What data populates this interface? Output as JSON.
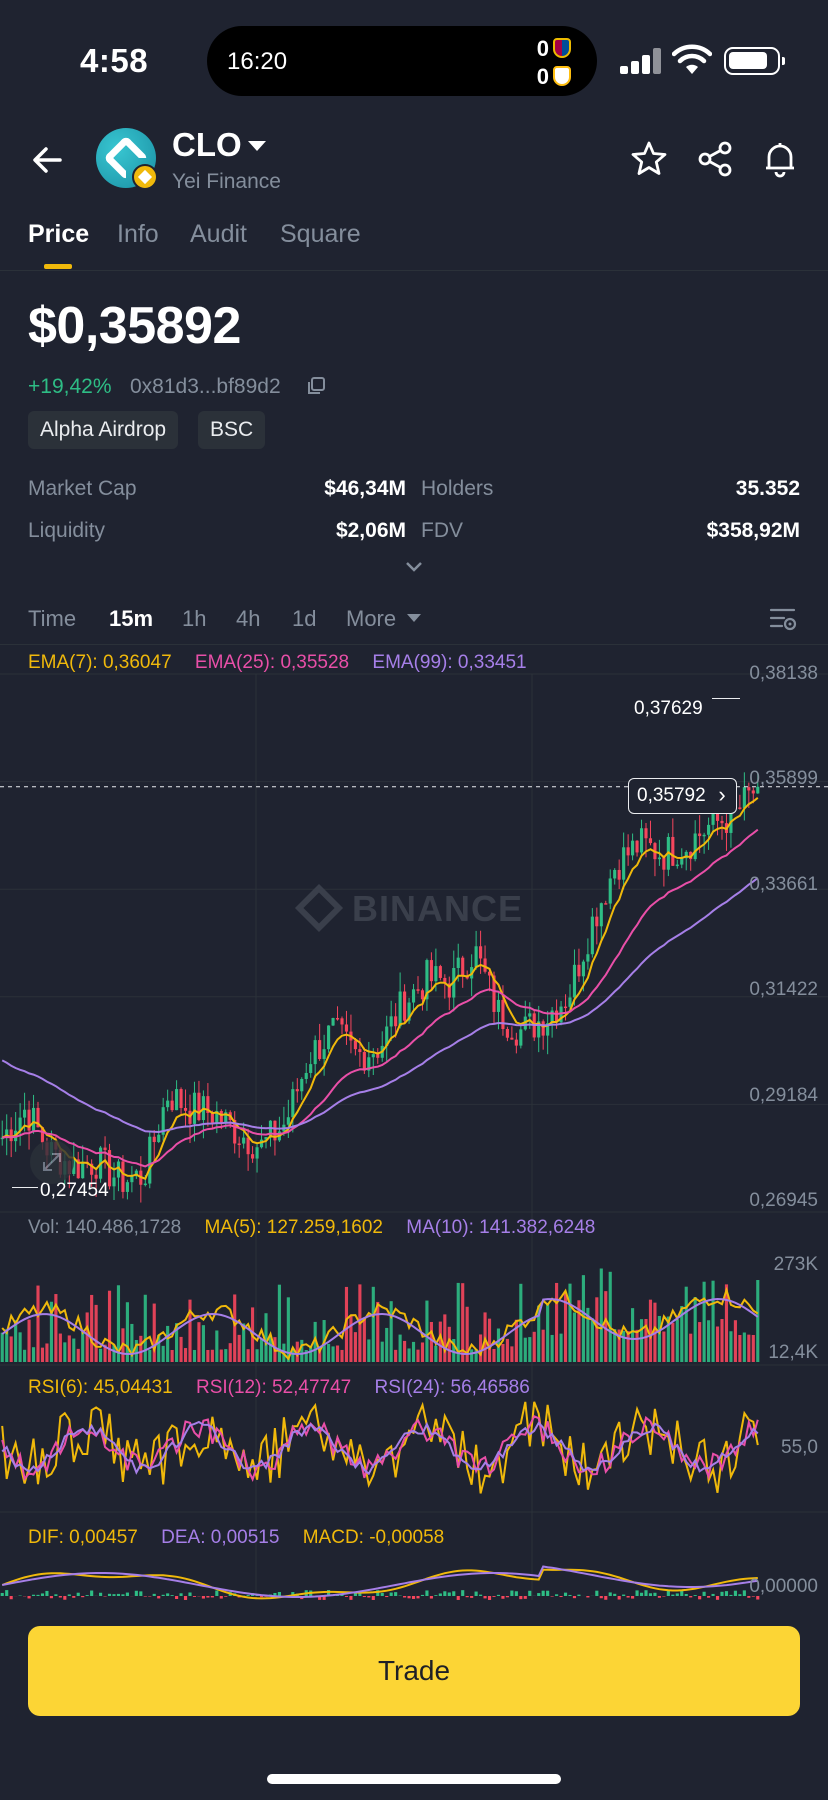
{
  "status_bar": {
    "time": "4:58",
    "island_time": "16:20",
    "score_home": "0",
    "score_away": "0"
  },
  "header": {
    "symbol": "CLO",
    "name": "Yei Finance"
  },
  "tabs": [
    {
      "label": "Price",
      "active": true
    },
    {
      "label": "Info"
    },
    {
      "label": "Audit"
    },
    {
      "label": "Square"
    }
  ],
  "price": {
    "value": "$0,35892",
    "change": "+19,42%",
    "address": "0x81d3...bf89d2",
    "tags": [
      "Alpha Airdrop",
      "BSC"
    ]
  },
  "stats": {
    "market_cap_label": "Market Cap",
    "market_cap": "$46,34M",
    "holders_label": "Holders",
    "holders": "35.352",
    "liquidity_label": "Liquidity",
    "liquidity": "$2,06M",
    "fdv_label": "FDV",
    "fdv": "$358,92M"
  },
  "intervals": {
    "time": "Time",
    "i15m": "15m",
    "i1h": "1h",
    "i4h": "4h",
    "i1d": "1d",
    "more": "More"
  },
  "indicators": {
    "ema7": "EMA(7): 0,36047",
    "ema25": "EMA(25): 0,35528",
    "ema99": "EMA(99): 0,33451",
    "vol": "Vol: 140.486,1728",
    "ma5": "MA(5): 127.259,1602",
    "ma10": "MA(10): 141.382,6248",
    "rsi6": "RSI(6): 45,04431",
    "rsi12": "RSI(12): 52,47747",
    "rsi24": "RSI(24): 56,46586",
    "dif": "DIF: 0,00457",
    "dea": "DEA: 0,00515",
    "macd": "MACD: -0,00058"
  },
  "chart_labels": {
    "current_price": "0,35792",
    "high": "0,37629",
    "low": "0,27454",
    "watermark": "BINANCE"
  },
  "axes": {
    "price_ticks": [
      "0,38138",
      "0,35899",
      "0,33661",
      "0,31422",
      "0,29184",
      "0,26945"
    ],
    "vol_ticks": [
      "273K",
      "12,4K"
    ],
    "rsi_tick": "55,0",
    "macd_tick": "0,00000"
  },
  "chart_data": {
    "type": "candlestick",
    "ylim": [
      0.26945,
      0.38138
    ],
    "price_path": [
      0.285,
      0.291,
      0.282,
      0.279,
      0.28,
      0.276,
      0.277,
      0.294,
      0.291,
      0.29,
      0.286,
      0.283,
      0.288,
      0.302,
      0.307,
      0.302,
      0.304,
      0.313,
      0.318,
      0.317,
      0.324,
      0.311,
      0.307,
      0.31,
      0.315,
      0.33,
      0.342,
      0.346,
      0.344,
      0.346,
      0.35,
      0.352,
      0.358
    ],
    "high": 0.37629,
    "low": 0.27454,
    "last": 0.35792
  },
  "actions": {
    "trade": "Trade"
  },
  "colors": {
    "up": "#2ebd85",
    "down": "#f6465d",
    "accent": "#fcd535",
    "ema7": "#f0b90b",
    "ema25": "#e94fa8",
    "ema99": "#a67fe8"
  }
}
